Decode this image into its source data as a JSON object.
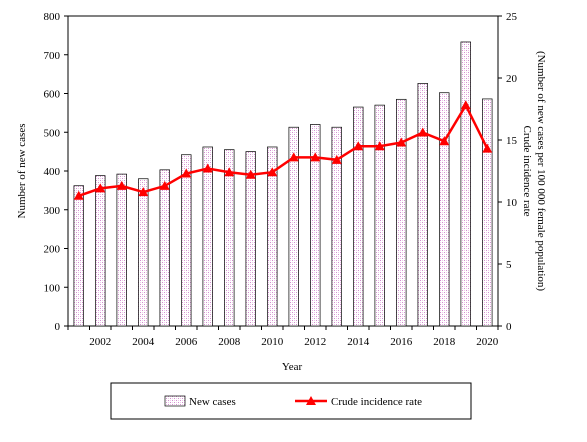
{
  "chart_data": {
    "type": "bar",
    "combo": "bar+line",
    "xlabel": "Year",
    "ylabel_left": "Number of new cases",
    "ylabel_right_line1": "Crude incidence rate",
    "ylabel_right_line2": "(Number of new cases per 100 000 female population)",
    "ylim_left": [
      0,
      800
    ],
    "ylim_right": [
      0,
      25
    ],
    "yticks_left": [
      0,
      100,
      200,
      300,
      400,
      500,
      600,
      700,
      800
    ],
    "yticks_right": [
      0,
      5,
      10,
      15,
      20,
      25
    ],
    "x": [
      2001,
      2002,
      2003,
      2004,
      2005,
      2006,
      2007,
      2008,
      2009,
      2010,
      2011,
      2012,
      2013,
      2014,
      2015,
      2016,
      2017,
      2018,
      2019,
      2020
    ],
    "xtick_labels": [
      "2002",
      "2004",
      "2006",
      "2008",
      "2010",
      "2012",
      "2014",
      "2016",
      "2018",
      "2020"
    ],
    "grid": false,
    "legend_position": "bottom",
    "series": [
      {
        "name": "New cases",
        "kind": "bar",
        "axis": "left",
        "color": "#cc99cc",
        "values": [
          362,
          388,
          392,
          380,
          403,
          442,
          462,
          455,
          450,
          462,
          513,
          520,
          513,
          565,
          570,
          585,
          626,
          602,
          733,
          586
        ]
      },
      {
        "name": "Crude incidence rate",
        "kind": "line",
        "axis": "right",
        "color": "#ff0000",
        "values": [
          10.5,
          11.1,
          11.3,
          10.8,
          11.3,
          12.3,
          12.7,
          12.4,
          12.2,
          12.4,
          13.6,
          13.6,
          13.4,
          14.5,
          14.5,
          14.8,
          15.6,
          14.9,
          17.8,
          14.3
        ]
      }
    ]
  }
}
